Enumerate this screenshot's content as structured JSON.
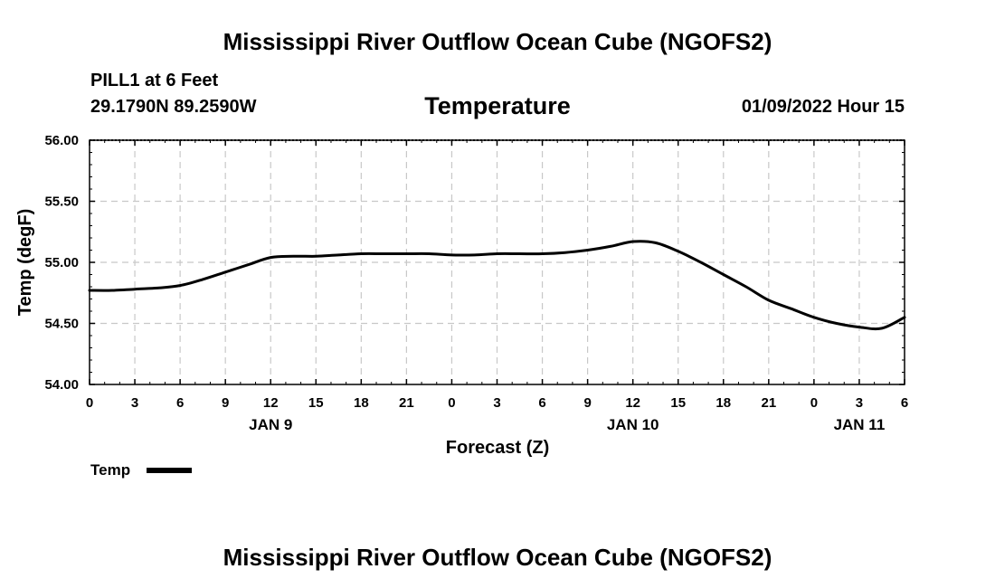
{
  "chart_data": {
    "type": "line",
    "title": "Mississippi River Outflow Ocean Cube (NGOFS2)",
    "footer_title": "Mississippi River Outflow Ocean Cube (NGOFS2)",
    "station": "PILL1 at 6 Feet",
    "location": "29.1790N  89.2590W",
    "parameter": "Temperature",
    "datetime": "01/09/2022 Hour 15",
    "ylabel": "Temp (degF)",
    "xlabel": "Forecast (Z)",
    "ylim": [
      54.0,
      56.0
    ],
    "yticks": [
      "54.00",
      "54.50",
      "55.00",
      "55.50",
      "56.00"
    ],
    "xlim": [
      0,
      54
    ],
    "xtick_hours": [
      0,
      3,
      6,
      9,
      12,
      15,
      18,
      21,
      24,
      27,
      30,
      33,
      36,
      39,
      42,
      45,
      48,
      51,
      54
    ],
    "xtick_labels": [
      "0",
      "3",
      "6",
      "9",
      "12",
      "15",
      "18",
      "21",
      "0",
      "3",
      "6",
      "9",
      "12",
      "15",
      "18",
      "21",
      "0",
      "3",
      "6"
    ],
    "day_labels": [
      {
        "hour": 12,
        "label": "JAN 9"
      },
      {
        "hour": 36,
        "label": "JAN 10"
      },
      {
        "hour": 51,
        "label": "JAN 11"
      }
    ],
    "grid": true,
    "legend": "bottom-left",
    "series": [
      {
        "name": "Temp",
        "color": "#000000",
        "x": [
          0,
          1.5,
          3,
          4.5,
          6,
          7.5,
          9,
          10.5,
          12,
          13.5,
          15,
          16.5,
          18,
          19.5,
          21,
          22.5,
          24,
          25.5,
          27,
          28.5,
          30,
          31.5,
          33,
          34.5,
          36,
          37.5,
          39,
          40.5,
          42,
          43.5,
          45,
          46.5,
          48,
          49.5,
          51,
          52.5,
          54
        ],
        "values": [
          54.77,
          54.77,
          54.78,
          54.79,
          54.81,
          54.86,
          54.92,
          54.98,
          55.04,
          55.05,
          55.05,
          55.06,
          55.07,
          55.07,
          55.07,
          55.07,
          55.06,
          55.06,
          55.07,
          55.07,
          55.07,
          55.08,
          55.1,
          55.13,
          55.17,
          55.16,
          55.09,
          55.0,
          54.9,
          54.8,
          54.69,
          54.62,
          54.55,
          54.5,
          54.47,
          54.46,
          54.55
        ]
      }
    ]
  }
}
